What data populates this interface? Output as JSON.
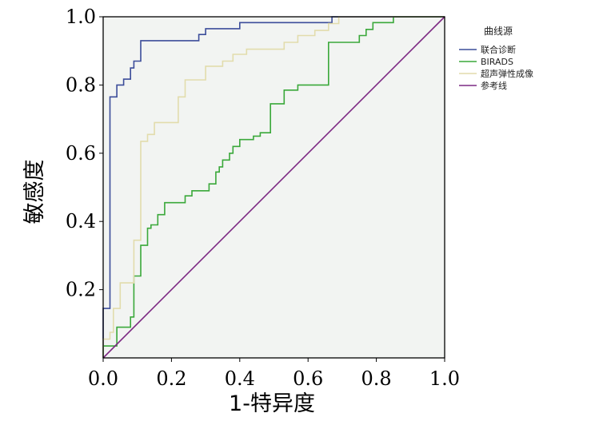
{
  "chart_data": {
    "type": "line",
    "xlabel": "1-特异度",
    "ylabel": "敏感度",
    "xlim": [
      0,
      1
    ],
    "ylim": [
      0,
      1
    ],
    "x_ticks": [
      "0.0",
      "0.2",
      "0.4",
      "0.6",
      "0.8",
      "1.0"
    ],
    "y_ticks": [
      "0.2",
      "0.4",
      "0.6",
      "0.8",
      "1.0"
    ],
    "grid": false,
    "background": "#f2f4f2",
    "legend": {
      "title": "曲线源",
      "position": "right"
    },
    "series": [
      {
        "name": "联合诊断",
        "color": "#3c4d9a",
        "points": [
          [
            0,
            0
          ],
          [
            0,
            0.145
          ],
          [
            0.02,
            0.145
          ],
          [
            0.02,
            0.765
          ],
          [
            0.04,
            0.765
          ],
          [
            0.04,
            0.8
          ],
          [
            0.06,
            0.8
          ],
          [
            0.06,
            0.817
          ],
          [
            0.08,
            0.817
          ],
          [
            0.08,
            0.85
          ],
          [
            0.09,
            0.85
          ],
          [
            0.09,
            0.87
          ],
          [
            0.11,
            0.87
          ],
          [
            0.11,
            0.93
          ],
          [
            0.28,
            0.93
          ],
          [
            0.28,
            0.948
          ],
          [
            0.3,
            0.948
          ],
          [
            0.3,
            0.965
          ],
          [
            0.4,
            0.965
          ],
          [
            0.4,
            0.983
          ],
          [
            0.67,
            0.983
          ],
          [
            0.67,
            1
          ],
          [
            1,
            1
          ]
        ]
      },
      {
        "name": "BIRADS",
        "color": "#3aa83a",
        "points": [
          [
            0,
            0
          ],
          [
            0,
            0.035
          ],
          [
            0.04,
            0.035
          ],
          [
            0.04,
            0.09
          ],
          [
            0.08,
            0.09
          ],
          [
            0.08,
            0.12
          ],
          [
            0.09,
            0.12
          ],
          [
            0.09,
            0.24
          ],
          [
            0.11,
            0.24
          ],
          [
            0.11,
            0.33
          ],
          [
            0.13,
            0.33
          ],
          [
            0.13,
            0.38
          ],
          [
            0.14,
            0.38
          ],
          [
            0.14,
            0.39
          ],
          [
            0.16,
            0.39
          ],
          [
            0.16,
            0.42
          ],
          [
            0.18,
            0.42
          ],
          [
            0.18,
            0.455
          ],
          [
            0.24,
            0.455
          ],
          [
            0.24,
            0.475
          ],
          [
            0.26,
            0.475
          ],
          [
            0.26,
            0.49
          ],
          [
            0.31,
            0.49
          ],
          [
            0.31,
            0.51
          ],
          [
            0.33,
            0.51
          ],
          [
            0.33,
            0.545
          ],
          [
            0.34,
            0.545
          ],
          [
            0.34,
            0.56
          ],
          [
            0.35,
            0.56
          ],
          [
            0.35,
            0.58
          ],
          [
            0.37,
            0.58
          ],
          [
            0.37,
            0.6
          ],
          [
            0.38,
            0.6
          ],
          [
            0.38,
            0.62
          ],
          [
            0.4,
            0.62
          ],
          [
            0.4,
            0.64
          ],
          [
            0.44,
            0.64
          ],
          [
            0.44,
            0.65
          ],
          [
            0.46,
            0.65
          ],
          [
            0.46,
            0.66
          ],
          [
            0.49,
            0.66
          ],
          [
            0.49,
            0.745
          ],
          [
            0.53,
            0.745
          ],
          [
            0.53,
            0.785
          ],
          [
            0.57,
            0.785
          ],
          [
            0.57,
            0.8
          ],
          [
            0.66,
            0.8
          ],
          [
            0.66,
            0.925
          ],
          [
            0.75,
            0.925
          ],
          [
            0.75,
            0.945
          ],
          [
            0.77,
            0.945
          ],
          [
            0.77,
            0.963
          ],
          [
            0.79,
            0.963
          ],
          [
            0.79,
            0.983
          ],
          [
            0.85,
            0.983
          ],
          [
            0.85,
            1
          ],
          [
            1,
            1
          ]
        ]
      },
      {
        "name": "超声弹性成像",
        "color": "#e2dcac",
        "points": [
          [
            0,
            0
          ],
          [
            0,
            0.055
          ],
          [
            0.02,
            0.055
          ],
          [
            0.02,
            0.075
          ],
          [
            0.03,
            0.075
          ],
          [
            0.03,
            0.145
          ],
          [
            0.05,
            0.145
          ],
          [
            0.05,
            0.22
          ],
          [
            0.09,
            0.22
          ],
          [
            0.09,
            0.345
          ],
          [
            0.11,
            0.345
          ],
          [
            0.11,
            0.635
          ],
          [
            0.13,
            0.635
          ],
          [
            0.13,
            0.655
          ],
          [
            0.15,
            0.655
          ],
          [
            0.15,
            0.69
          ],
          [
            0.22,
            0.69
          ],
          [
            0.22,
            0.765
          ],
          [
            0.24,
            0.765
          ],
          [
            0.24,
            0.815
          ],
          [
            0.3,
            0.815
          ],
          [
            0.3,
            0.855
          ],
          [
            0.35,
            0.855
          ],
          [
            0.35,
            0.87
          ],
          [
            0.38,
            0.87
          ],
          [
            0.38,
            0.89
          ],
          [
            0.42,
            0.89
          ],
          [
            0.42,
            0.905
          ],
          [
            0.53,
            0.905
          ],
          [
            0.53,
            0.925
          ],
          [
            0.57,
            0.925
          ],
          [
            0.57,
            0.945
          ],
          [
            0.62,
            0.945
          ],
          [
            0.62,
            0.96
          ],
          [
            0.66,
            0.96
          ],
          [
            0.66,
            0.98
          ],
          [
            0.69,
            0.98
          ],
          [
            0.69,
            1
          ],
          [
            1,
            1
          ]
        ]
      },
      {
        "name": "参考线",
        "color": "#7d2a83",
        "points": [
          [
            0,
            0
          ],
          [
            1,
            1
          ]
        ]
      }
    ]
  }
}
